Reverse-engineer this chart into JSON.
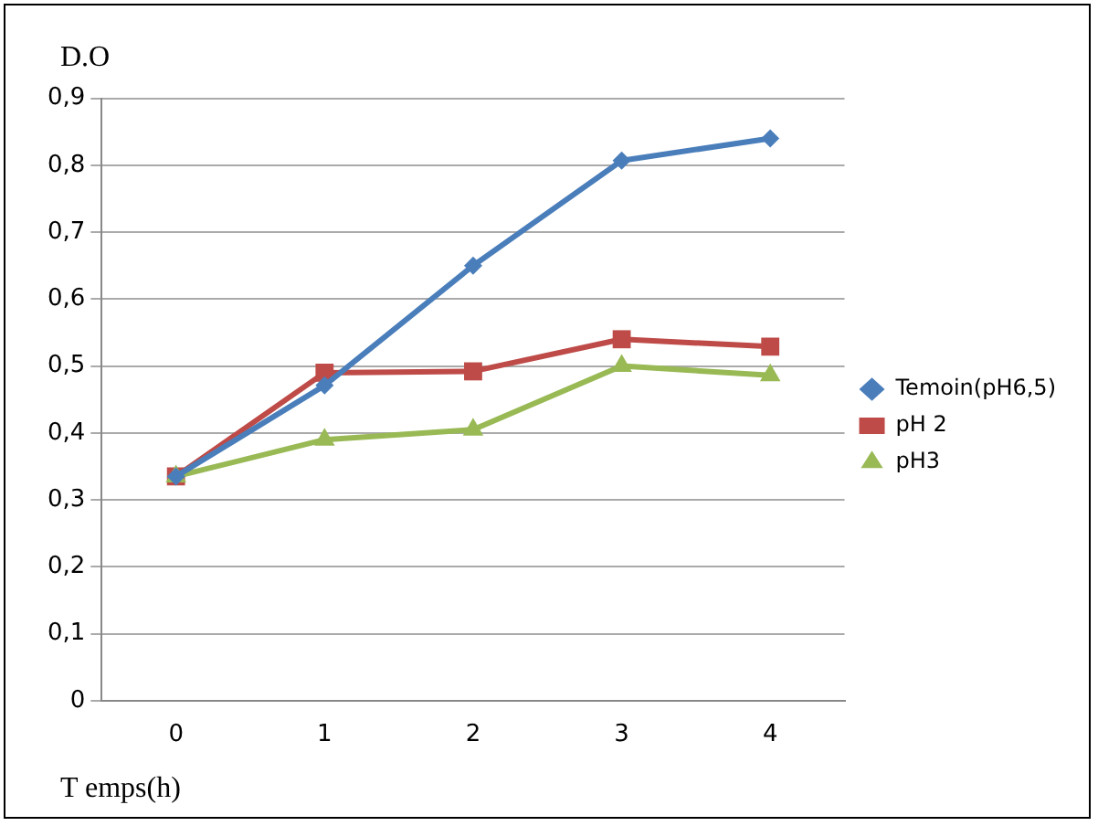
{
  "chart_data": {
    "type": "line",
    "ylabel": "D.O",
    "xlabel": "T emps(h)",
    "categories": [
      "0",
      "1",
      "2",
      "3",
      "4"
    ],
    "series": [
      {
        "name": "Temoin(pH6,5)",
        "color": "#4a7ebb",
        "marker": "diamond",
        "values": [
          0.335,
          0.471,
          0.65,
          0.807,
          0.84
        ]
      },
      {
        "name": "pH 2",
        "color": "#be4b48",
        "marker": "square",
        "values": [
          0.335,
          0.49,
          0.492,
          0.54,
          0.529
        ]
      },
      {
        "name": "pH3",
        "color": "#98b954",
        "marker": "triangle",
        "values": [
          0.335,
          0.39,
          0.405,
          0.5,
          0.486
        ]
      }
    ],
    "ylim": [
      0,
      0.9
    ],
    "yticks": [
      0,
      {
        "value": 0.1,
        "label": "0,1"
      },
      {
        "value": 0.2,
        "label": "0,2"
      },
      {
        "value": 0.3,
        "label": "0,3"
      },
      {
        "value": 0.4,
        "label": "0,4"
      },
      {
        "value": 0.5,
        "label": "0,5"
      },
      {
        "value": 0.6,
        "label": "0,6"
      },
      {
        "value": 0.7,
        "label": "0,7"
      },
      {
        "value": 0.8,
        "label": "0,8"
      },
      {
        "value": 0.9,
        "label": "0,9"
      }
    ],
    "grid": "y",
    "legend": "right",
    "line_style": "solid"
  }
}
